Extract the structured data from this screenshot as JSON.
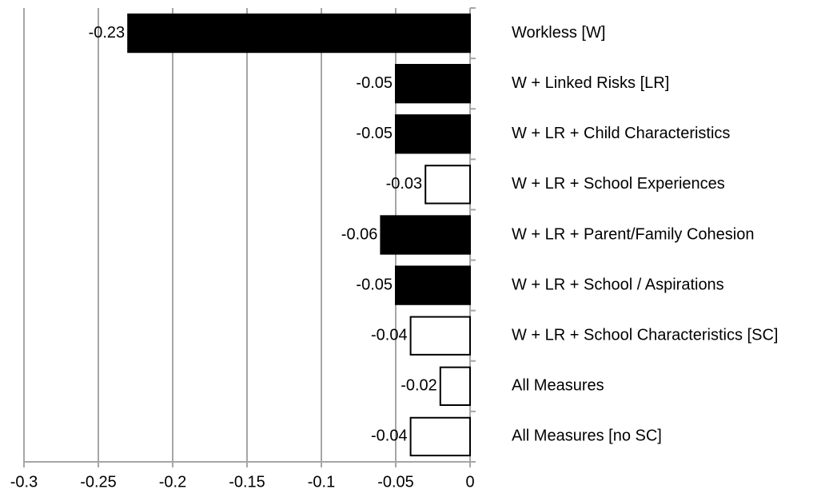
{
  "chart_data": {
    "type": "barh",
    "categories": [
      "Workless [W]",
      "W + Linked Risks [LR]",
      "W + LR + Child Characteristics",
      "W + LR + School Experiences",
      "W + LR + Parent/Family Cohesion",
      "W + LR + School / Aspirations",
      "W + LR + School Characteristics [SC]",
      "All Measures",
      "All Measures [no SC]"
    ],
    "values": [
      -0.23,
      -0.05,
      -0.05,
      -0.03,
      -0.06,
      -0.05,
      -0.04,
      -0.02,
      -0.04
    ],
    "colors": [
      "#000000",
      "#000000",
      "#000000",
      "#ffffff",
      "#000000",
      "#000000",
      "#ffffff",
      "#ffffff",
      "#ffffff"
    ],
    "edgecolor": "#000000",
    "xlim": [
      -0.3,
      0
    ],
    "xticks": [
      -0.3,
      -0.25,
      -0.2,
      -0.15,
      -0.1,
      -0.05,
      0
    ],
    "grid": true
  }
}
